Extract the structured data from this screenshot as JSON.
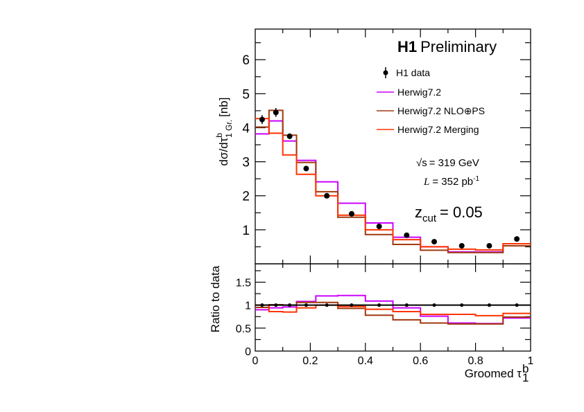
{
  "chart_data": [
    {
      "type": "line",
      "panel": "main",
      "title": "",
      "experiment_label": "H1",
      "experiment_sublabel": "Preliminary",
      "ylabel": "dσ/dτ",
      "ylabel_sup": "b",
      "ylabel_sub": "1 Gr.",
      "ylabel_unit": "[nb]",
      "xlabel": "",
      "ylim": [
        0,
        6.9
      ],
      "xlim": [
        0,
        1
      ],
      "yticks": [
        1,
        2,
        3,
        4,
        5,
        6
      ],
      "bin_edges": [
        0,
        0.05,
        0.1,
        0.15,
        0.22,
        0.3,
        0.4,
        0.5,
        0.6,
        0.7,
        0.8,
        0.9,
        1.0
      ],
      "data": {
        "name": "H1 data",
        "x": [
          0.025,
          0.075,
          0.125,
          0.185,
          0.26,
          0.35,
          0.45,
          0.55,
          0.65,
          0.75,
          0.85,
          0.95
        ],
        "values": [
          4.24,
          4.45,
          3.75,
          2.8,
          2.0,
          1.47,
          1.1,
          0.84,
          0.65,
          0.53,
          0.53,
          0.73
        ],
        "errors": [
          0.13,
          0.13,
          0.08,
          0.06,
          0.04,
          0.04,
          0.03,
          0.03,
          0.02,
          0.02,
          0.02,
          0.03
        ]
      },
      "series": [
        {
          "name": "Herwig7.2",
          "color": "#cc00ff",
          "values": [
            3.82,
            4.2,
            3.61,
            3.04,
            2.41,
            1.78,
            1.2,
            0.78,
            0.5,
            0.35,
            0.35,
            0.53
          ]
        },
        {
          "name": "Herwig7.2 NLO⊕PS",
          "color": "#a0380e",
          "values": [
            4.02,
            4.51,
            3.78,
            2.98,
            2.12,
            1.37,
            0.86,
            0.57,
            0.4,
            0.33,
            0.33,
            0.53
          ]
        },
        {
          "name": "Herwig7.2 Merging",
          "color": "#ff3300",
          "values": [
            4.27,
            3.84,
            3.2,
            2.63,
            2.0,
            1.43,
            1.0,
            0.71,
            0.5,
            0.43,
            0.41,
            0.59
          ]
        }
      ],
      "legend": [
        "H1 data",
        "Herwig7.2",
        "Herwig7.2 NLO⊕PS",
        "Herwig7.2 Merging"
      ],
      "legend_placement": "top-right",
      "annotations": {
        "sqrt_s": "√s = 319 GeV",
        "sqrt_s_sym": "√s",
        "sqrt_s_val": "= 319 GeV",
        "lumi_sym": "L",
        "lumi_val": "= 352 pb",
        "lumi_exp": "-1",
        "zcut_sym": "z",
        "zcut_sub": "cut",
        "zcut_val": "= 0.05"
      }
    },
    {
      "type": "line",
      "panel": "ratio",
      "ylabel": "Ratio to data",
      "xlabel": "Groomed τ",
      "xlabel_sup": "b",
      "xlabel_sub": "1",
      "ylim": [
        0,
        1.9
      ],
      "xlim": [
        0,
        1
      ],
      "yticks": [
        "0",
        "0.5",
        "1",
        "1.5"
      ],
      "ytick_values": [
        0,
        0.5,
        1,
        1.5
      ],
      "xticks": [
        "0",
        "0.2",
        "0.4",
        "0.6",
        "0.8",
        "1"
      ],
      "xtick_values": [
        0,
        0.2,
        0.4,
        0.6,
        0.8,
        1
      ],
      "bin_edges": [
        0,
        0.05,
        0.1,
        0.15,
        0.22,
        0.3,
        0.4,
        0.5,
        0.6,
        0.7,
        0.8,
        0.9,
        1.0
      ],
      "reference_line": 1,
      "data_x": [
        0.025,
        0.075,
        0.125,
        0.185,
        0.26,
        0.35,
        0.45,
        0.55,
        0.65,
        0.75,
        0.85,
        0.95
      ],
      "series": [
        {
          "name": "Herwig7.2",
          "color": "#cc00ff",
          "values": [
            0.9,
            0.94,
            0.96,
            1.08,
            1.2,
            1.21,
            1.09,
            0.94,
            0.76,
            0.61,
            0.6,
            0.72
          ]
        },
        {
          "name": "Herwig7.2 NLO⊕PS",
          "color": "#a0380e",
          "values": [
            0.95,
            1.01,
            1.0,
            1.06,
            1.06,
            0.93,
            0.78,
            0.68,
            0.61,
            0.59,
            0.59,
            0.74
          ]
        },
        {
          "name": "Herwig7.2 Merging",
          "color": "#ff3300",
          "values": [
            1.0,
            0.86,
            0.85,
            0.94,
            1.0,
            0.97,
            0.91,
            0.86,
            0.8,
            0.8,
            0.77,
            0.82
          ]
        }
      ]
    }
  ]
}
